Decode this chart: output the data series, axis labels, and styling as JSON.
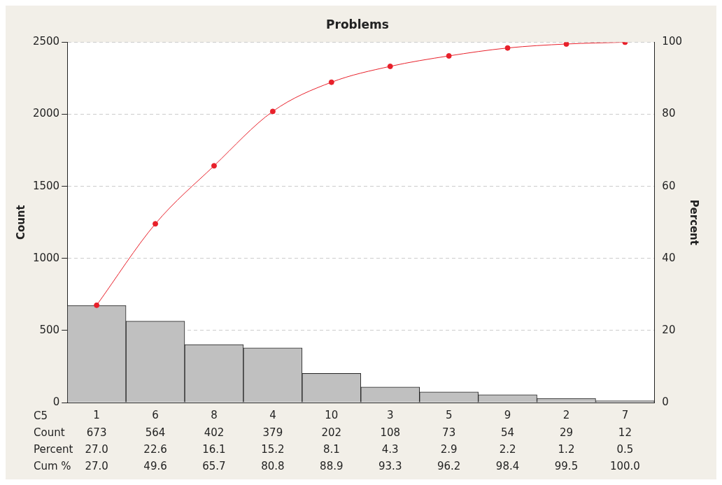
{
  "chart_data": {
    "type": "bar",
    "title": "Problems",
    "xlabel": "C5",
    "ylabel": "Count",
    "y2label": "Percent",
    "categories": [
      "1",
      "6",
      "8",
      "4",
      "10",
      "3",
      "5",
      "9",
      "2",
      "7"
    ],
    "series": [
      {
        "color": "#c0c0c0",
        "values": [
          673,
          564,
          402,
          379,
          202,
          108,
          73,
          54,
          29,
          12
        ],
        "value_labels": [
          "673",
          "564",
          "402",
          "379",
          "202",
          "108",
          "73",
          "54",
          "29",
          "12"
        ]
      },
      {
        "type": "line",
        "axis": "y2",
        "color": "#e8202a",
        "marker": "circle",
        "values": [
          27.0,
          49.6,
          65.7,
          80.8,
          88.9,
          93.3,
          96.2,
          98.4,
          99.5,
          100.0
        ],
        "value_labels": [
          "27.0",
          "49.6",
          "65.7",
          "80.8",
          "88.9",
          "93.3",
          "96.2",
          "98.4",
          "99.5",
          "100.0"
        ]
      }
    ],
    "annotations": [
      "Count",
      "Percent",
      "Cum %",
      "27.0",
      "22.6",
      "16.1",
      "15.2",
      "8.1",
      "4.3",
      "2.9",
      "2.2",
      "1.2",
      "0.5"
    ],
    "ylim": [
      0,
      2500
    ],
    "yticks": [
      0,
      500,
      1000,
      1500,
      2000,
      2500
    ],
    "y2lim": [
      0,
      100
    ],
    "y2ticks": [
      0,
      20,
      40,
      60,
      80,
      100
    ],
    "grid": "y",
    "legend": false
  }
}
